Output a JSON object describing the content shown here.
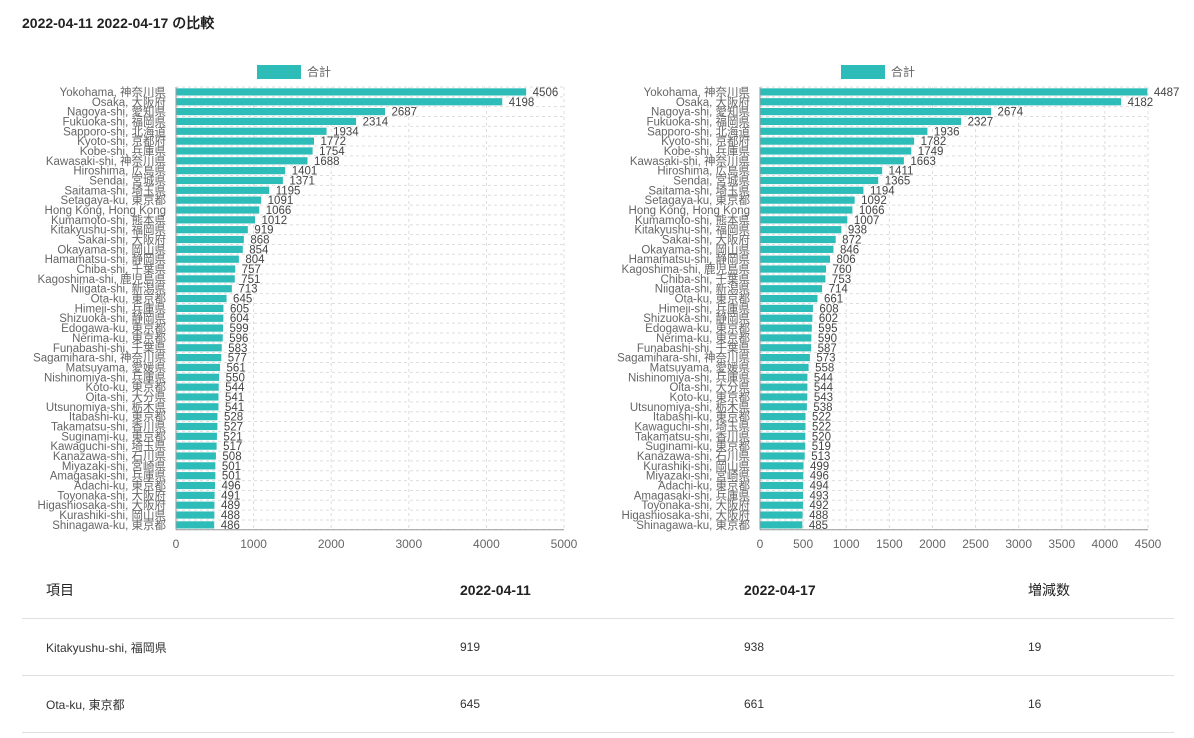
{
  "page_title": "2022-04-11 2022-04-17 の比較",
  "colors": {
    "bar": "#2ebcb8",
    "grid": "#dddddd",
    "axis": "#999999"
  },
  "chart_data": [
    {
      "type": "bar",
      "orientation": "horizontal",
      "legend": [
        "合計"
      ],
      "legend_position": "top",
      "grid": true,
      "xlim": [
        0,
        5000
      ],
      "x_ticks": [
        0,
        1000,
        2000,
        3000,
        4000,
        5000
      ],
      "categories": [
        "Yokohama, 神奈川県",
        "Osaka, 大阪府",
        "Nagoya-shi, 愛知県",
        "Fukuoka-shi, 福岡県",
        "Sapporo-shi, 北海道",
        "Kyoto-shi, 京都府",
        "Kobe-shi, 兵庫県",
        "Kawasaki-shi, 神奈川県",
        "Hiroshima, 広島県",
        "Sendai, 宮城県",
        "Saitama-shi, 埼玉県",
        "Setagaya-ku, 東京都",
        "Hong Kong, Hong Kong",
        "Kumamoto-shi, 熊本県",
        "Kitakyushu-shi, 福岡県",
        "Sakai-shi, 大阪府",
        "Okayama-shi, 岡山県",
        "Hamamatsu-shi, 静岡県",
        "Chiba-shi, 千葉県",
        "Kagoshima-shi, 鹿児島県",
        "Niigata-shi, 新潟県",
        "Ota-ku, 東京都",
        "Himeji-shi, 兵庫県",
        "Shizuoka-shi, 静岡県",
        "Edogawa-ku, 東京都",
        "Nerima-ku, 東京都",
        "Funabashi-shi, 千葉県",
        "Sagamihara-shi, 神奈川県",
        "Matsuyama, 愛媛県",
        "Nishinomiya-shi, 兵庫県",
        "Koto-ku, 東京都",
        "Oita-shi, 大分県",
        "Utsunomiya-shi, 栃木県",
        "Itabashi-ku, 東京都",
        "Takamatsu-shi, 香川県",
        "Suginami-ku, 東京都",
        "Kawaguchi-shi, 埼玉県",
        "Kanazawa-shi, 石川県",
        "Miyazaki-shi, 宮崎県",
        "Amagasaki-shi, 兵庫県",
        "Adachi-ku, 東京都",
        "Toyonaka-shi, 大阪府",
        "Higashiosaka-shi, 大阪府",
        "Kurashiki-shi, 岡山県",
        "Shinagawa-ku, 東京都"
      ],
      "series": [
        {
          "name": "合計",
          "values": [
            4506,
            4198,
            2687,
            2314,
            1934,
            1772,
            1754,
            1688,
            1401,
            1371,
            1195,
            1091,
            1066,
            1012,
            919,
            868,
            854,
            804,
            757,
            751,
            713,
            645,
            605,
            604,
            599,
            596,
            583,
            577,
            561,
            550,
            544,
            541,
            541,
            528,
            527,
            521,
            517,
            508,
            501,
            501,
            496,
            491,
            489,
            488,
            486
          ]
        }
      ]
    },
    {
      "type": "bar",
      "orientation": "horizontal",
      "legend": [
        "合計"
      ],
      "legend_position": "top",
      "grid": true,
      "xlim": [
        0,
        4500
      ],
      "x_ticks": [
        0,
        500,
        1000,
        1500,
        2000,
        2500,
        3000,
        3500,
        4000,
        4500
      ],
      "categories": [
        "Yokohama, 神奈川県",
        "Osaka, 大阪府",
        "Nagoya-shi, 愛知県",
        "Fukuoka-shi, 福岡県",
        "Sapporo-shi, 北海道",
        "Kyoto-shi, 京都府",
        "Kobe-shi, 兵庫県",
        "Kawasaki-shi, 神奈川県",
        "Hiroshima, 広島県",
        "Sendai, 宮城県",
        "Saitama-shi, 埼玉県",
        "Setagaya-ku, 東京都",
        "Hong Kong, Hong Kong",
        "Kumamoto-shi, 熊本県",
        "Kitakyushu-shi, 福岡県",
        "Sakai-shi, 大阪府",
        "Okayama-shi, 岡山県",
        "Hamamatsu-shi, 静岡県",
        "Kagoshima-shi, 鹿児島県",
        "Chiba-shi, 千葉県",
        "Niigata-shi, 新潟県",
        "Ota-ku, 東京都",
        "Himeji-shi, 兵庫県",
        "Shizuoka-shi, 静岡県",
        "Edogawa-ku, 東京都",
        "Nerima-ku, 東京都",
        "Funabashi-shi, 千葉県",
        "Sagamihara-shi, 神奈川県",
        "Matsuyama, 愛媛県",
        "Nishinomiya-shi, 兵庫県",
        "Oita-shi, 大分県",
        "Koto-ku, 東京都",
        "Utsunomiya-shi, 栃木県",
        "Itabashi-ku, 東京都",
        "Kawaguchi-shi, 埼玉県",
        "Takamatsu-shi, 香川県",
        "Suginami-ku, 東京都",
        "Kanazawa-shi, 石川県",
        "Kurashiki-shi, 岡山県",
        "Miyazaki-shi, 宮崎県",
        "Adachi-ku, 東京都",
        "Amagasaki-shi, 兵庫県",
        "Toyonaka-shi, 大阪府",
        "Higashiosaka-shi, 大阪府",
        "Shinagawa-ku, 東京都"
      ],
      "series": [
        {
          "name": "合計",
          "values": [
            4487,
            4182,
            2674,
            2327,
            1936,
            1782,
            1749,
            1663,
            1411,
            1365,
            1194,
            1092,
            1066,
            1007,
            938,
            872,
            846,
            806,
            760,
            753,
            714,
            661,
            608,
            602,
            595,
            590,
            587,
            573,
            558,
            544,
            544,
            543,
            538,
            522,
            522,
            520,
            519,
            513,
            499,
            496,
            494,
            493,
            492,
            488,
            485
          ]
        }
      ]
    }
  ],
  "table": {
    "headers": [
      "項目",
      "2022-04-11",
      "2022-04-17",
      "増減数"
    ],
    "rows": [
      [
        "Kitakyushu-shi, 福岡県",
        "919",
        "938",
        "19"
      ],
      [
        "Ota-ku, 東京都",
        "645",
        "661",
        "16"
      ]
    ]
  }
}
